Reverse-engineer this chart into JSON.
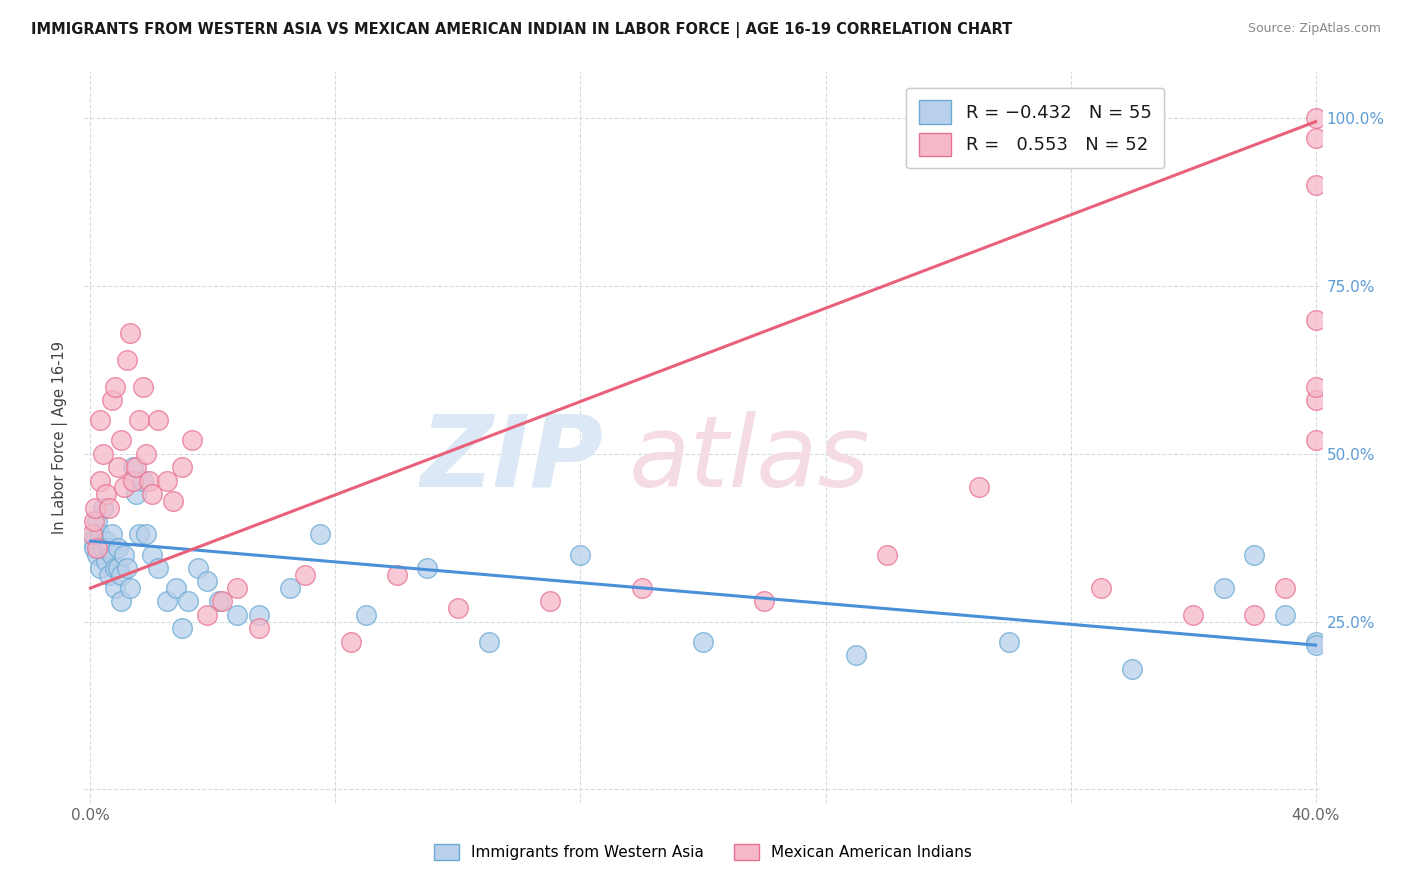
{
  "title": "IMMIGRANTS FROM WESTERN ASIA VS MEXICAN AMERICAN INDIAN IN LABOR FORCE | AGE 16-19 CORRELATION CHART",
  "source": "Source: ZipAtlas.com",
  "ylabel": "In Labor Force | Age 16-19",
  "blue_R": -0.432,
  "blue_N": 55,
  "pink_R": 0.553,
  "pink_N": 52,
  "bottom_legend_blue": "Immigrants from Western Asia",
  "bottom_legend_pink": "Mexican American Indians",
  "blue_fill_color": "#b8d0ea",
  "pink_fill_color": "#f5b8c8",
  "blue_edge_color": "#6aaad4",
  "pink_edge_color": "#e87090",
  "blue_line_color": "#4a90d9",
  "pink_line_color": "#e8607a",
  "watermark_zip_color": "#dce8f5",
  "watermark_atlas_color": "#f5dce4",
  "background_color": "#ffffff",
  "grid_color": "#d0d8e0",
  "blue_line_x": [
    0.0,
    0.4
  ],
  "blue_line_y": [
    0.37,
    0.215
  ],
  "pink_line_x": [
    0.0,
    0.4
  ],
  "pink_line_y": [
    0.3,
    0.995
  ],
  "xlim": [
    -0.002,
    0.402
  ],
  "ylim": [
    -0.02,
    1.07
  ],
  "x_ticks": [
    0.0,
    0.08,
    0.16,
    0.24,
    0.32,
    0.4
  ],
  "x_tick_labels": [
    "0.0%",
    "",
    "",
    "",
    "",
    "40.0%"
  ],
  "y_ticks": [
    0.0,
    0.25,
    0.5,
    0.75,
    1.0
  ],
  "y_tick_labels_right": [
    "",
    "25.0%",
    "50.0%",
    "75.0%",
    "100.0%"
  ],
  "blue_scatter_x": [
    0.0005,
    0.001,
    0.0015,
    0.002,
    0.002,
    0.003,
    0.003,
    0.004,
    0.004,
    0.005,
    0.005,
    0.006,
    0.006,
    0.007,
    0.007,
    0.008,
    0.008,
    0.009,
    0.009,
    0.01,
    0.01,
    0.011,
    0.012,
    0.013,
    0.014,
    0.015,
    0.016,
    0.017,
    0.018,
    0.02,
    0.022,
    0.025,
    0.028,
    0.03,
    0.032,
    0.035,
    0.038,
    0.042,
    0.048,
    0.055,
    0.065,
    0.075,
    0.09,
    0.11,
    0.13,
    0.16,
    0.2,
    0.25,
    0.3,
    0.34,
    0.37,
    0.38,
    0.39,
    0.4,
    0.4
  ],
  "blue_scatter_y": [
    0.37,
    0.36,
    0.38,
    0.4,
    0.35,
    0.38,
    0.33,
    0.42,
    0.36,
    0.37,
    0.34,
    0.32,
    0.36,
    0.38,
    0.35,
    0.3,
    0.33,
    0.36,
    0.33,
    0.32,
    0.28,
    0.35,
    0.33,
    0.3,
    0.48,
    0.44,
    0.38,
    0.46,
    0.38,
    0.35,
    0.33,
    0.28,
    0.3,
    0.24,
    0.28,
    0.33,
    0.31,
    0.28,
    0.26,
    0.26,
    0.3,
    0.38,
    0.26,
    0.33,
    0.22,
    0.35,
    0.22,
    0.2,
    0.22,
    0.18,
    0.3,
    0.35,
    0.26,
    0.22,
    0.215
  ],
  "pink_scatter_x": [
    0.0005,
    0.001,
    0.0015,
    0.002,
    0.003,
    0.003,
    0.004,
    0.005,
    0.006,
    0.007,
    0.008,
    0.009,
    0.01,
    0.011,
    0.012,
    0.013,
    0.014,
    0.015,
    0.016,
    0.017,
    0.018,
    0.019,
    0.02,
    0.022,
    0.025,
    0.027,
    0.03,
    0.033,
    0.038,
    0.043,
    0.048,
    0.055,
    0.07,
    0.085,
    0.1,
    0.12,
    0.15,
    0.18,
    0.22,
    0.26,
    0.29,
    0.33,
    0.36,
    0.38,
    0.39,
    0.4,
    0.4,
    0.4,
    0.4,
    0.4,
    0.4,
    0.4
  ],
  "pink_scatter_y": [
    0.38,
    0.4,
    0.42,
    0.36,
    0.46,
    0.55,
    0.5,
    0.44,
    0.42,
    0.58,
    0.6,
    0.48,
    0.52,
    0.45,
    0.64,
    0.68,
    0.46,
    0.48,
    0.55,
    0.6,
    0.5,
    0.46,
    0.44,
    0.55,
    0.46,
    0.43,
    0.48,
    0.52,
    0.26,
    0.28,
    0.3,
    0.24,
    0.32,
    0.22,
    0.32,
    0.27,
    0.28,
    0.3,
    0.28,
    0.35,
    0.45,
    0.3,
    0.26,
    0.26,
    0.3,
    1.0,
    0.97,
    0.7,
    0.58,
    0.6,
    0.52,
    0.9
  ]
}
